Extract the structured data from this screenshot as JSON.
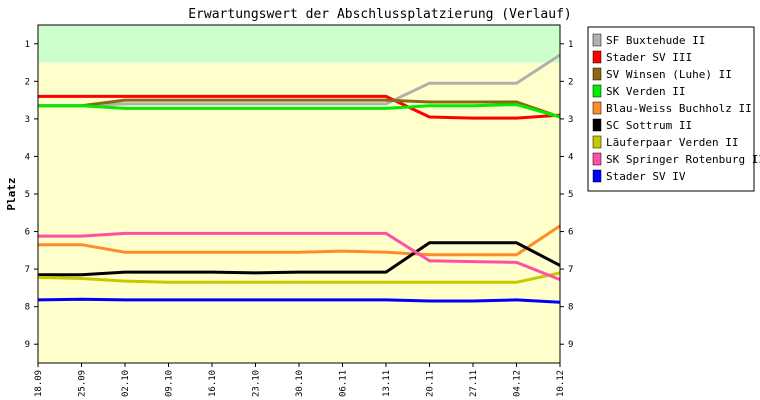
{
  "chart_data": {
    "type": "line",
    "title": "Erwartungswert der Abschlussplatzierung (Verlauf)",
    "ylabel": "Platz",
    "xlabel": "",
    "ylim": [
      0.5,
      9.5
    ],
    "y_inverted": true,
    "yticks": [
      1,
      2,
      3,
      4,
      5,
      6,
      7,
      8,
      9
    ],
    "grid": false,
    "legend_position": "right",
    "x": [
      "18.09",
      "25.09",
      "02.10",
      "09.10",
      "16.10",
      "23.10",
      "30.10",
      "06.11",
      "13.11",
      "20.11",
      "27.11",
      "04.12",
      "10.12"
    ],
    "bands": [
      {
        "from": 0.5,
        "to": 1.5,
        "color": "#ccffcc"
      },
      {
        "from": 1.5,
        "to": 9.5,
        "color": "#ffffcc"
      }
    ],
    "series": [
      {
        "name": "SF Buxtehude II",
        "color": "#b0b0b0",
        "values": [
          2.65,
          2.65,
          2.6,
          2.6,
          2.6,
          2.6,
          2.6,
          2.6,
          2.6,
          2.05,
          2.05,
          2.05,
          1.3
        ]
      },
      {
        "name": "Stader SV III",
        "color": "#ff0000",
        "values": [
          2.4,
          2.4,
          2.4,
          2.4,
          2.4,
          2.4,
          2.4,
          2.4,
          2.4,
          2.95,
          2.98,
          2.98,
          2.9
        ]
      },
      {
        "name": "SV Winsen (Luhe) II",
        "color": "#8b6914",
        "values": [
          2.65,
          2.65,
          2.5,
          2.5,
          2.5,
          2.5,
          2.5,
          2.5,
          2.5,
          2.55,
          2.55,
          2.55,
          2.95
        ]
      },
      {
        "name": "SK Verden II",
        "color": "#00ee00",
        "values": [
          2.65,
          2.65,
          2.72,
          2.72,
          2.72,
          2.72,
          2.72,
          2.72,
          2.72,
          2.65,
          2.65,
          2.62,
          2.95
        ]
      },
      {
        "name": "Blau-Weiss Buchholz II",
        "color": "#ff8c2a",
        "values": [
          6.35,
          6.35,
          6.55,
          6.55,
          6.55,
          6.55,
          6.55,
          6.52,
          6.55,
          6.62,
          6.62,
          6.62,
          5.85
        ]
      },
      {
        "name": "SC Sottrum II",
        "color": "#000000",
        "values": [
          7.15,
          7.15,
          7.08,
          7.08,
          7.08,
          7.1,
          7.08,
          7.08,
          7.08,
          6.3,
          6.3,
          6.3,
          6.9
        ]
      },
      {
        "name": "Läuferpaar Verden II",
        "color": "#c8c800",
        "values": [
          7.22,
          7.25,
          7.32,
          7.35,
          7.35,
          7.35,
          7.35,
          7.35,
          7.35,
          7.35,
          7.35,
          7.35,
          7.1
        ]
      },
      {
        "name": "SK Springer Rotenburg II",
        "color": "#ff4fa7",
        "values": [
          6.12,
          6.12,
          6.05,
          6.05,
          6.05,
          6.05,
          6.05,
          6.05,
          6.05,
          6.78,
          6.8,
          6.82,
          7.28
        ]
      },
      {
        "name": "Stader SV IV",
        "color": "#0000ff",
        "values": [
          7.82,
          7.8,
          7.82,
          7.82,
          7.82,
          7.82,
          7.82,
          7.82,
          7.82,
          7.85,
          7.85,
          7.82,
          7.88
        ]
      }
    ]
  }
}
